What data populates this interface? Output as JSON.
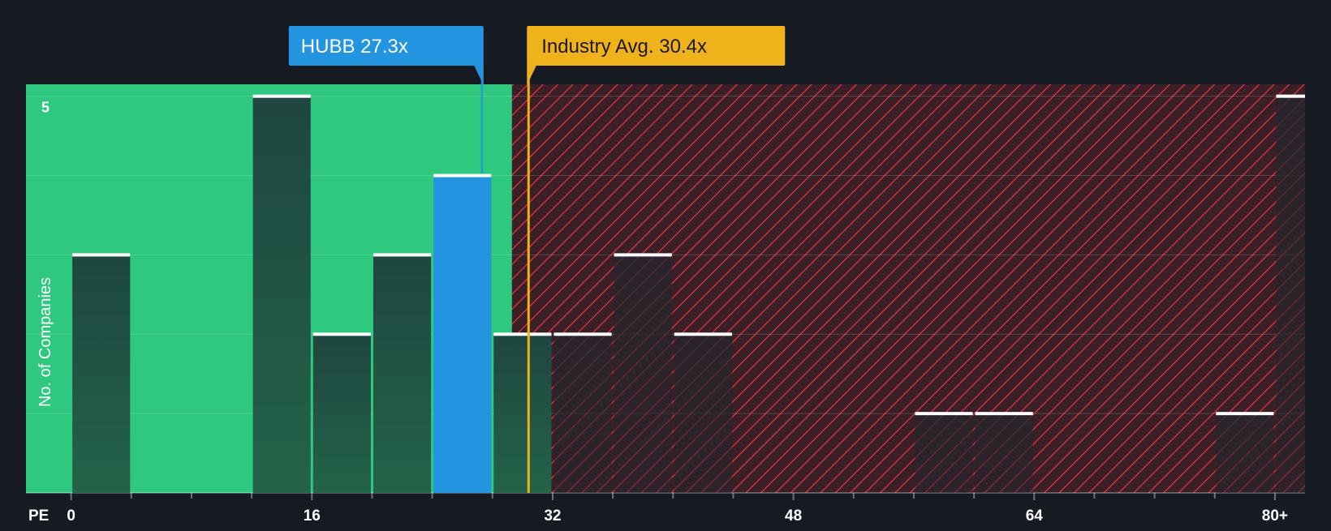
{
  "chart_data": {
    "type": "bar",
    "title": "",
    "xlabel": "PE",
    "ylabel": "No. of Companies",
    "x_tick_labels": [
      "0",
      "16",
      "32",
      "48",
      "64",
      "80+"
    ],
    "x_tick_values": [
      0,
      16,
      32,
      48,
      64,
      80
    ],
    "y_tick_labels": [
      "5"
    ],
    "y_tick_values": [
      5
    ],
    "xlim": [
      -3,
      82
    ],
    "ylim": [
      0,
      5.15
    ],
    "bin_width": 4,
    "bars": [
      {
        "start": 0,
        "count": 3,
        "highlight": false
      },
      {
        "start": 12,
        "count": 5,
        "highlight": false
      },
      {
        "start": 16,
        "count": 2,
        "highlight": false
      },
      {
        "start": 20,
        "count": 3,
        "highlight": false
      },
      {
        "start": 24,
        "count": 4,
        "highlight": true
      },
      {
        "start": 28,
        "count": 2,
        "highlight": false
      },
      {
        "start": 32,
        "count": 2,
        "highlight": false
      },
      {
        "start": 36,
        "count": 3,
        "highlight": false
      },
      {
        "start": 40,
        "count": 2,
        "highlight": false
      },
      {
        "start": 56,
        "count": 1,
        "highlight": false
      },
      {
        "start": 60,
        "count": 1,
        "highlight": false
      },
      {
        "start": 76,
        "count": 1,
        "highlight": false
      },
      {
        "start": 80,
        "count": 5,
        "highlight": false
      }
    ],
    "company": {
      "label": "HUBB 27.3x",
      "value": 27.3
    },
    "industry_avg": {
      "label": "Industry Avg. 30.4x",
      "value": 30.4
    },
    "fair_zone_end": 29.3,
    "grid": true,
    "colors": {
      "background": "#151a23",
      "fair_zone": "#2ec97e",
      "overvalued_zone": "#3a1f27",
      "hatch": "#c8323c",
      "bar_fill": "#1f4a3f",
      "highlight_bar": "#2394e0",
      "bar_cap": "#ffffff",
      "company_label_bg": "#2394e0",
      "industry_label_bg": "#f0b21b",
      "industry_line": "#f0b21b",
      "text": "#ffffff",
      "industry_text": "#1a1a1a"
    }
  }
}
